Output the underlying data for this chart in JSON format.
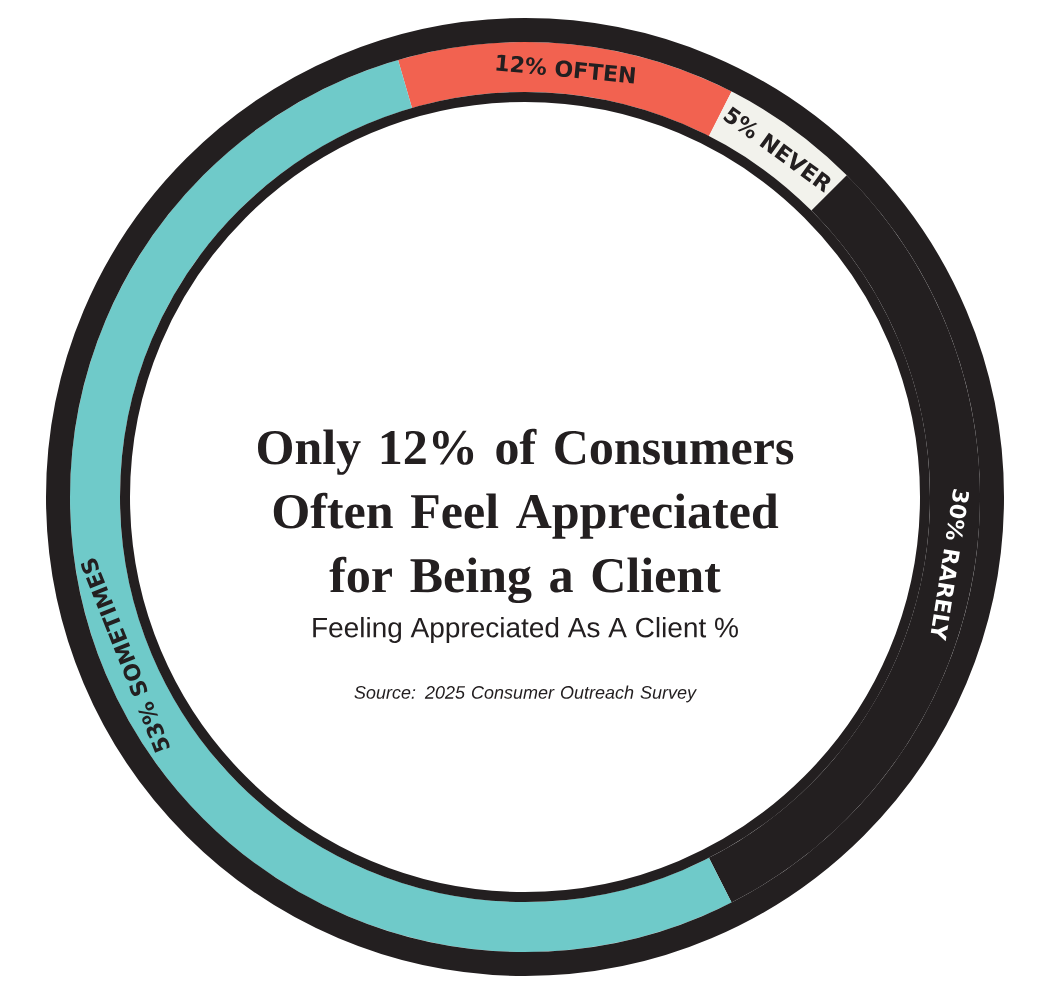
{
  "chart_data": {
    "type": "donut",
    "title": "Only 12% of Consumers Often Feel Appreciated for Being a Client",
    "subtitle": "Feeling Appreciated As A Client %",
    "annotations": [
      "Source: 2025 Consumer Outreach Survey"
    ],
    "categories": [
      "OFTEN",
      "NEVER",
      "RARELY",
      "SOMETIMES"
    ],
    "values": [
      12,
      5,
      30,
      53
    ],
    "value_labels": [
      "12%",
      "5%",
      "30%",
      "53%"
    ],
    "colors": [
      "#f26250",
      "#f2f2ec",
      "#231f20",
      "#6fcac9"
    ]
  }
}
